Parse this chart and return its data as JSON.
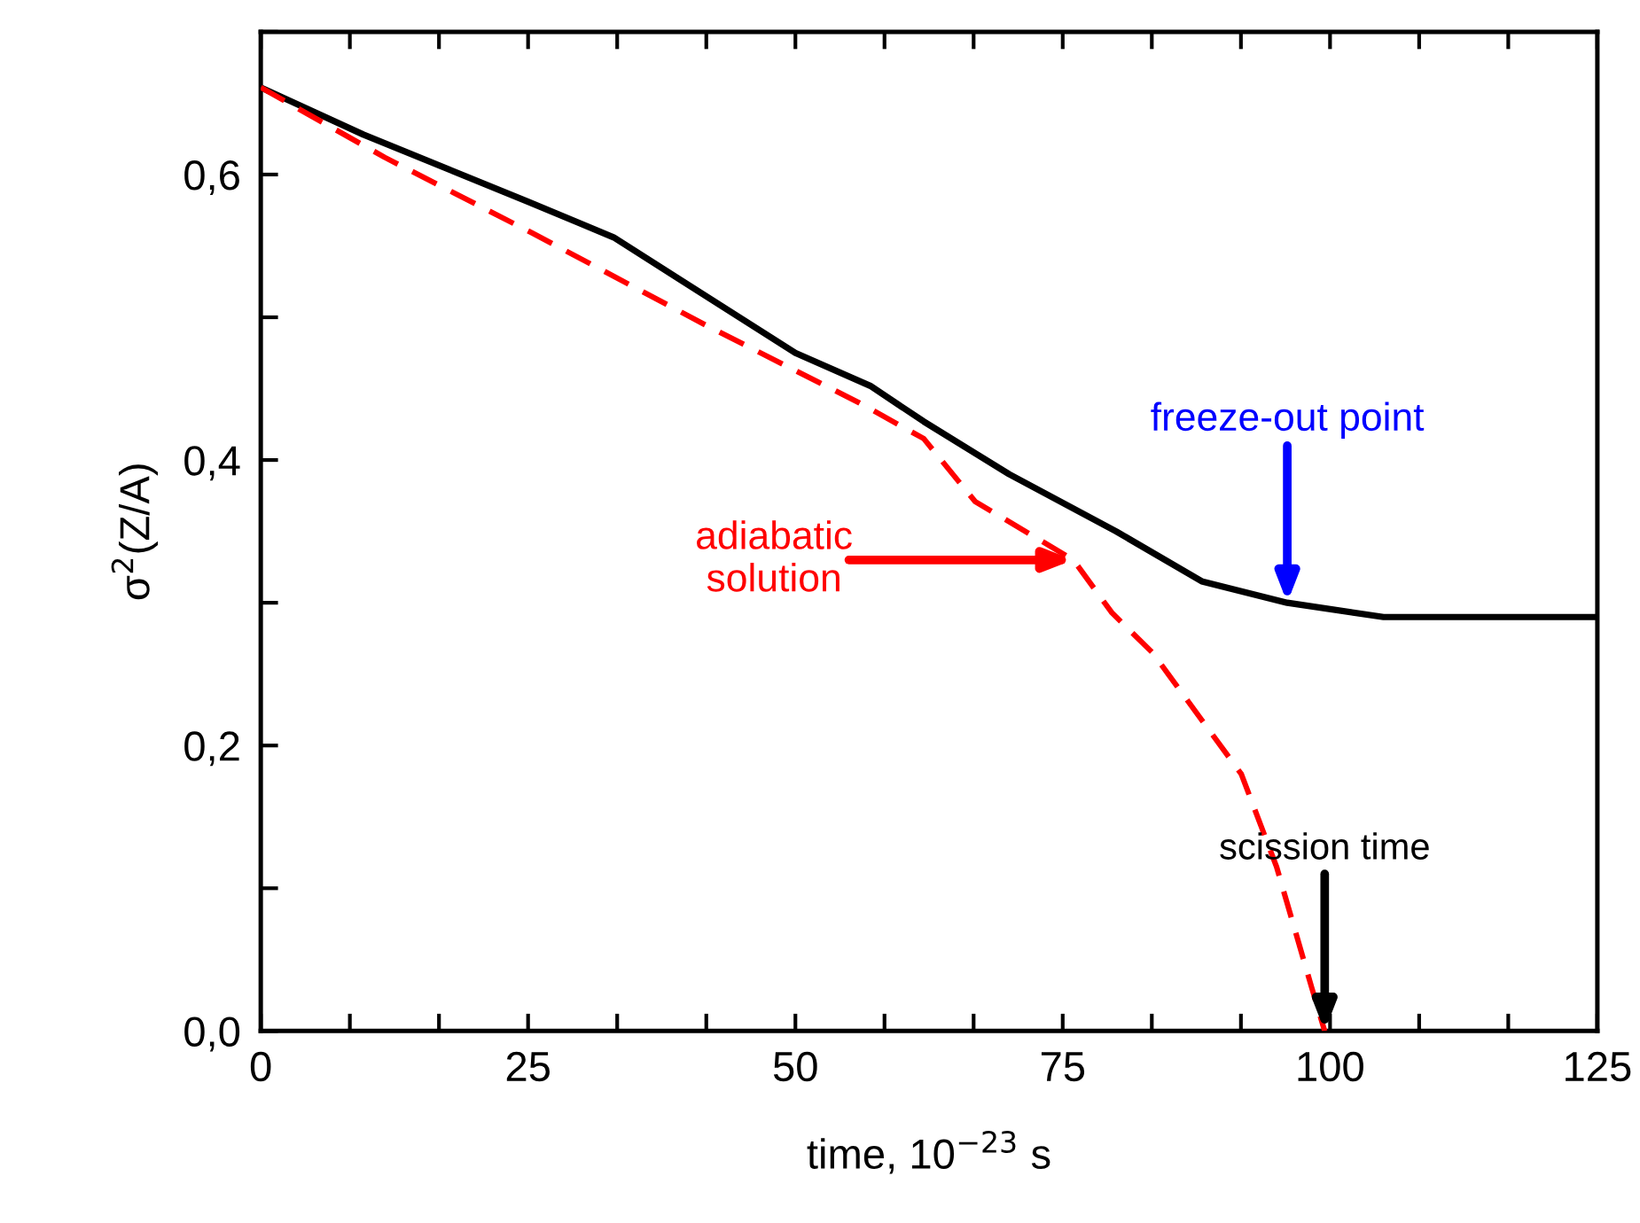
{
  "chart_data": {
    "type": "line",
    "xlabel": "time, 10$^{−23}$ s",
    "ylabel": "σ$^{2}$(Z/A)",
    "series": [
      {
        "color": "#000000",
        "line_style": "solid",
        "x": [
          0,
          9.6,
          25,
          33,
          50,
          57,
          62,
          70,
          80,
          88,
          96,
          105,
          125
        ],
        "values": [
          0.661,
          0.628,
          0.581,
          0.556,
          0.475,
          0.452,
          0.427,
          0.39,
          0.35,
          0.315,
          0.3,
          0.29,
          0.29
        ]
      },
      {
        "color": "#ff0000",
        "line_style": "dashed",
        "x": [
          0,
          11.6,
          25.4,
          42,
          56,
          62,
          66.8,
          76,
          79.6,
          83.4,
          91.7,
          95,
          98.3,
          99.5
        ],
        "values": [
          0.661,
          0.612,
          0.559,
          0.493,
          0.44,
          0.415,
          0.371,
          0.33,
          0.293,
          0.265,
          0.18,
          0.115,
          0.03,
          0.0
        ]
      }
    ],
    "xlim": [
      0,
      125
    ],
    "ylim": [
      0,
      0.7
    ],
    "xticks": [
      0,
      {
        "value": 8.333,
        "label": null
      },
      {
        "value": 16.667,
        "label": null
      },
      25,
      {
        "value": 33.333,
        "label": null
      },
      {
        "value": 41.667,
        "label": null
      },
      50,
      {
        "value": 58.333,
        "label": null
      },
      {
        "value": 66.667,
        "label": null
      },
      75,
      {
        "value": 83.333,
        "label": null
      },
      {
        "value": 91.667,
        "label": null
      },
      100,
      {
        "value": 108.333,
        "label": null
      },
      {
        "value": 116.667,
        "label": null
      },
      125
    ],
    "yticks": [
      {
        "value": 0,
        "label": "0,0"
      },
      {
        "value": 0.1,
        "label": null
      },
      {
        "value": 0.2,
        "label": "0,2"
      },
      {
        "value": 0.3,
        "label": null
      },
      {
        "value": 0.4,
        "label": "0,4"
      },
      {
        "value": 0.5,
        "label": null
      },
      {
        "value": 0.6,
        "label": "0,6"
      },
      {
        "value": 0.7,
        "label": null
      }
    ],
    "annotations": [
      {
        "text": "adiabatic\nsolution",
        "x": 76,
        "y": 0.33
      },
      {
        "text": "freeze-out point",
        "x": 96,
        "y": 0.3
      },
      {
        "text": "scission time",
        "x": 99.5,
        "y": 0.0
      }
    ],
    "grid": false,
    "legend": false
  }
}
